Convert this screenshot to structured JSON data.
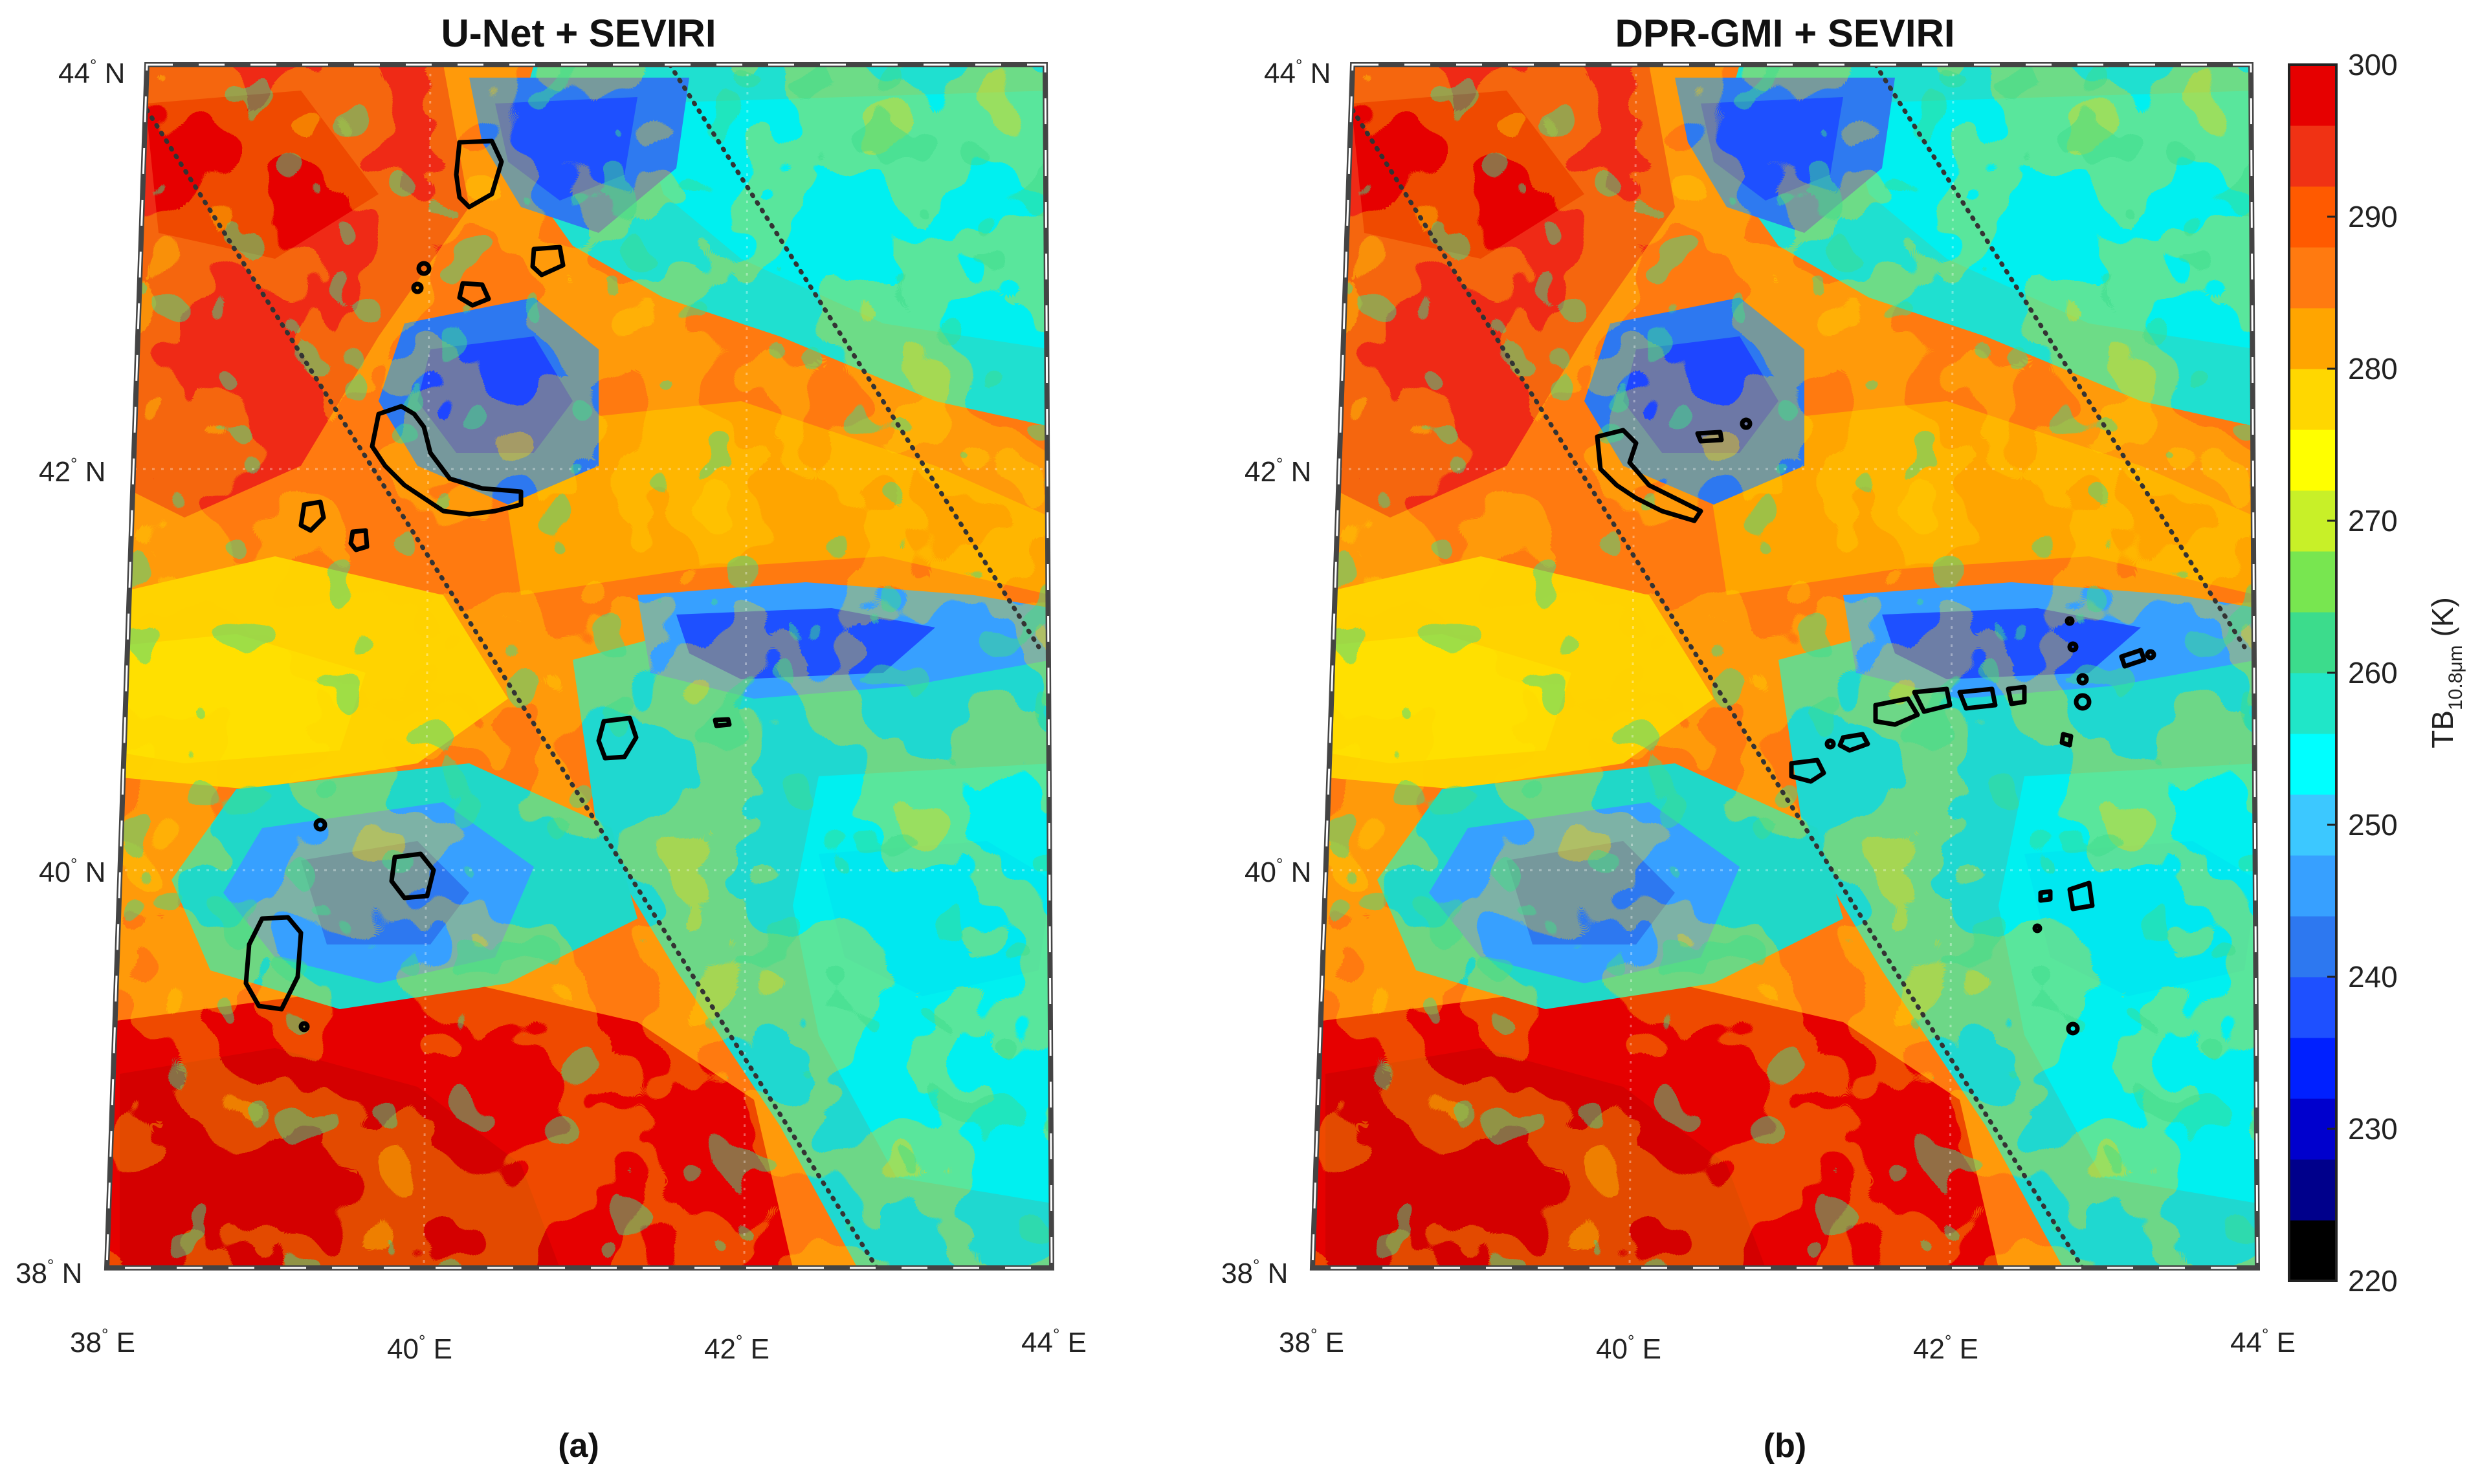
{
  "panels": [
    {
      "title": "U-Net + SEVIRI",
      "caption": "(a)",
      "lat_labels": [
        {
          "value": "44",
          "hemi": "N"
        },
        {
          "value": "42",
          "hemi": "N"
        },
        {
          "value": "40",
          "hemi": "N"
        },
        {
          "value": "38",
          "hemi": "N"
        }
      ],
      "lon_labels": [
        {
          "value": "38",
          "hemi": "E"
        },
        {
          "value": "40",
          "hemi": "E"
        },
        {
          "value": "42",
          "hemi": "E"
        },
        {
          "value": "44",
          "hemi": "E"
        }
      ]
    },
    {
      "title": "DPR-GMI + SEVIRI",
      "caption": "(b)",
      "lat_labels": [
        {
          "value": "44",
          "hemi": "N"
        },
        {
          "value": "42",
          "hemi": "N"
        },
        {
          "value": "40",
          "hemi": "N"
        },
        {
          "value": "38",
          "hemi": "N"
        }
      ],
      "lon_labels": [
        {
          "value": "38",
          "hemi": "E"
        },
        {
          "value": "40",
          "hemi": "E"
        },
        {
          "value": "42",
          "hemi": "E"
        },
        {
          "value": "44",
          "hemi": "E"
        }
      ]
    }
  ],
  "colorbar": {
    "label_main": "TB",
    "label_sub": "10.8μm",
    "label_unit": "(K)",
    "min": 220,
    "max": 300,
    "ticks": [
      "300",
      "290",
      "280",
      "270",
      "260",
      "250",
      "240",
      "230",
      "220"
    ],
    "colors": [
      "#000000",
      "#00008b",
      "#0000cd",
      "#0020ff",
      "#1e50ff",
      "#2d78f0",
      "#37a0ff",
      "#3cc8ff",
      "#00ffff",
      "#20e6c8",
      "#3cdc8c",
      "#78e650",
      "#c8f028",
      "#ffff00",
      "#ffd700",
      "#ffa500",
      "#ff7a10",
      "#ff5a00",
      "#f03214",
      "#e60000"
    ]
  },
  "map": {
    "lat_range": [
      38,
      44
    ],
    "lon_range": [
      38,
      44
    ],
    "swath_edges": "dotted black lines",
    "contour_color": "#000000"
  }
}
